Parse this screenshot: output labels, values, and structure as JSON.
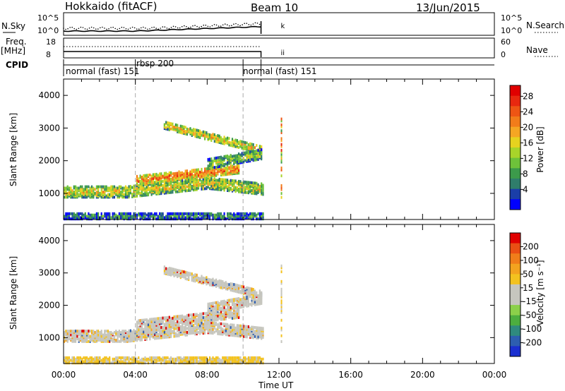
{
  "header": {
    "title": "Hokkaido (fitACF)",
    "beam": "Beam 10",
    "date": "13/Jun/2015"
  },
  "top_panels": {
    "nsky_label": "N.Sky",
    "nsky_ticks": [
      "10^5",
      "10^0"
    ],
    "nsearch_label": "N.Search",
    "nsearch_ticks": [
      "10^5",
      "10^0"
    ],
    "freq_label": "Freq.",
    "freq_unit": "[MHz]",
    "freq_ticks": [
      "18",
      "8"
    ],
    "nave_label": "Nave",
    "nave_ticks": [
      "60",
      "0"
    ],
    "cpid_label": "CPID",
    "cpid_segments": [
      {
        "label": "normal (fast) 151",
        "start": 0.0,
        "end": 4.0
      },
      {
        "label": "rbsp 200",
        "start": 4.0,
        "end": 10.0
      },
      {
        "label": "normal (fast) 151",
        "start": 10.0,
        "end": 11.0
      }
    ]
  },
  "legend_power": {
    "label": "Power [dB]",
    "ticks": [
      "28",
      "24",
      "20",
      "16",
      "12",
      "8",
      "4"
    ],
    "colors": [
      "#0000ff",
      "#1a3ea8",
      "#2f7d6b",
      "#3c9a4b",
      "#6ec23a",
      "#a8d42a",
      "#e6d21f",
      "#f5a623",
      "#f27c1a",
      "#ee5514",
      "#e8280f",
      "#e00000"
    ]
  },
  "legend_velocity": {
    "label": "Velocity [m s⁻¹]",
    "ticks": [
      "200",
      "100",
      "50",
      "15",
      "-15",
      "-50",
      "-100",
      "-200"
    ],
    "colors": [
      "#1a2fd0",
      "#2d5eb0",
      "#2f8a7e",
      "#4cae3f",
      "#8bd04a",
      "#c6c6be",
      "#c6c6be",
      "#f3c21f",
      "#f3a31f",
      "#f07d1a",
      "#ea4f14",
      "#e00000"
    ]
  },
  "chart_data": [
    {
      "type": "heatmap",
      "name": "power",
      "xlabel": "",
      "ylabel": "Slant Range [km]",
      "xlim": [
        0,
        24
      ],
      "ylim": [
        200,
        4500
      ],
      "yticks": [
        1000,
        2000,
        3000,
        4000
      ],
      "xticks": [
        "00:00",
        "04:00",
        "08:00",
        "12:00",
        "16:00",
        "20:00",
        "00:00"
      ],
      "colorbar": {
        "label": "Power [dB]",
        "ticks": [
          4,
          8,
          12,
          16,
          20,
          24,
          28
        ]
      },
      "grid": false
    },
    {
      "type": "heatmap",
      "name": "velocity",
      "xlabel": "Time UT",
      "ylabel": "Slant Range [km]",
      "xlim": [
        0,
        24
      ],
      "ylim": [
        200,
        4500
      ],
      "yticks": [
        1000,
        2000,
        3000,
        4000
      ],
      "xticks": [
        "00:00",
        "04:00",
        "08:00",
        "12:00",
        "16:00",
        "20:00",
        "00:00"
      ],
      "colorbar": {
        "label": "Velocity [m s⁻¹]",
        "ticks": [
          -200,
          -100,
          -50,
          -15,
          15,
          50,
          100,
          200
        ]
      },
      "grid": false
    }
  ],
  "xaxis": {
    "label": "Time UT",
    "ticks": [
      "00:00",
      "04:00",
      "08:00",
      "12:00",
      "16:00",
      "20:00",
      "00:00"
    ]
  }
}
